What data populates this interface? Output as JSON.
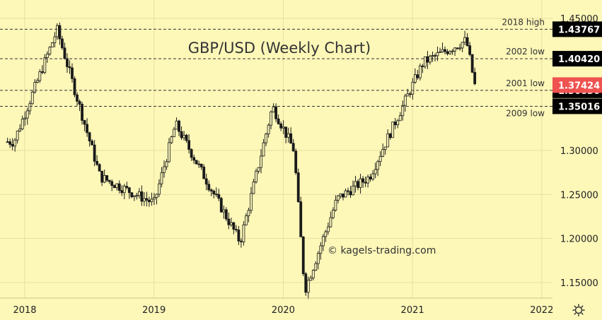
{
  "chart_data": {
    "type": "candlestick",
    "title": "GBP/USD (Weekly Chart)",
    "watermark": "© kagels-trading.com",
    "ylim": [
      1.135,
      1.455
    ],
    "y_ticks": [
      {
        "value": 1.45,
        "label": "1.45000"
      },
      {
        "value": 1.3,
        "label": "1.30000"
      },
      {
        "value": 1.25,
        "label": "1.25000"
      },
      {
        "value": 1.2,
        "label": "1.20000"
      },
      {
        "value": 1.15,
        "label": "1.15000"
      }
    ],
    "x_ticks": [
      "2018",
      "2019",
      "2020",
      "2021",
      "2022"
    ],
    "levels": [
      {
        "label": "2018 high",
        "value": 1.43767,
        "badge": "1.43767",
        "label_pos": "above"
      },
      {
        "label": "2002 low",
        "value": 1.4042,
        "badge": "1.40420",
        "label_pos": "above"
      },
      {
        "label": "2001 low",
        "value": 1.3683,
        "badge": "1.36830",
        "label_pos": "above"
      },
      {
        "label": "2009 low",
        "value": 1.35016,
        "badge": "1.35016",
        "label_pos": "below"
      }
    ],
    "current_price": {
      "value": 1.37424,
      "label": "1.37424"
    },
    "key_points": [
      {
        "x": "2017-12",
        "y": 1.31
      },
      {
        "x": "2018-04",
        "y": 1.437
      },
      {
        "x": "2018-08",
        "y": 1.27
      },
      {
        "x": "2019-01",
        "y": 1.24
      },
      {
        "x": "2019-03",
        "y": 1.33
      },
      {
        "x": "2019-09",
        "y": 1.196
      },
      {
        "x": "2019-12",
        "y": 1.35
      },
      {
        "x": "2020-02",
        "y": 1.3
      },
      {
        "x": "2020-03",
        "y": 1.141
      },
      {
        "x": "2020-06",
        "y": 1.245
      },
      {
        "x": "2020-09",
        "y": 1.27
      },
      {
        "x": "2021-02",
        "y": 1.4
      },
      {
        "x": "2021-06",
        "y": 1.425
      },
      {
        "x": "2021-07",
        "y": 1.36
      }
    ],
    "grid": true,
    "colors": {
      "background": "#fdf7b8",
      "grid": "#e8dfa0",
      "candle": "#1a1a1a",
      "current_badge": "#ef5350",
      "level_badge": "#000000",
      "level_line": "#333333"
    }
  },
  "icons": {
    "settings": "gear-icon"
  }
}
